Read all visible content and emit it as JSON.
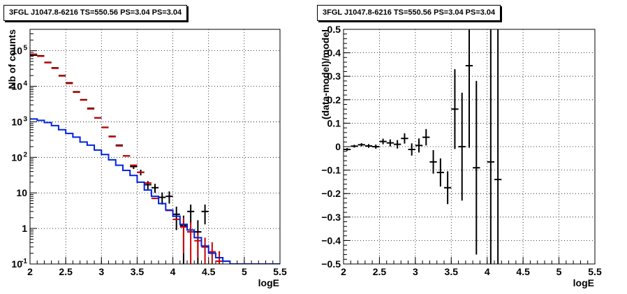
{
  "left_panel": {
    "title": "3FGL J1047.8-6216 TS=550.56 PS=3.04 PS=3.04",
    "xlabel": "logE",
    "ylabel": "Nb of counts"
  },
  "right_panel": {
    "title": "3FGL J1047.8-6216 TS=550.56 PS=3.04 PS=3.04",
    "xlabel": "logE",
    "ylabel": "(data-model)/model"
  },
  "colors": {
    "data": "#000000",
    "model_total": "#cc0000",
    "model_source": "#0022dd",
    "grid": "#000000"
  },
  "chart_data": [
    {
      "type": "line",
      "title": "3FGL J1047.8-6216 TS=550.56 PS=3.04 PS=3.04",
      "xlabel": "logE",
      "ylabel": "Nb of counts",
      "xlim": [
        2,
        5.5
      ],
      "ylim": [
        0.1,
        400000
      ],
      "yscale": "log",
      "grid": true,
      "x_ticks": [
        "2",
        "2.5",
        "3",
        "3.5",
        "4",
        "4.5",
        "5",
        "5.5"
      ],
      "y_ticks": [
        {
          "value": 0.1,
          "label": "10",
          "sup": "-1"
        },
        {
          "value": 1,
          "label": "1",
          "sup": ""
        },
        {
          "value": 10,
          "label": "10",
          "sup": ""
        },
        {
          "value": 100,
          "label": "10",
          "sup": "2"
        },
        {
          "value": 1000,
          "label": "10",
          "sup": "3"
        },
        {
          "value": 10000,
          "label": "10",
          "sup": "4"
        },
        {
          "value": 100000,
          "label": "10",
          "sup": "5"
        }
      ],
      "bin_edges": [
        2.0,
        2.1,
        2.2,
        2.3,
        2.4,
        2.5,
        2.6,
        2.7,
        2.8,
        2.9,
        3.0,
        3.1,
        3.2,
        3.3,
        3.4,
        3.5,
        3.6,
        3.7,
        3.8,
        3.9,
        4.0,
        4.1,
        4.2,
        4.3,
        4.4,
        4.5,
        4.6,
        4.7,
        4.8,
        4.9,
        5.0,
        5.1,
        5.2,
        5.3,
        5.4,
        5.5
      ],
      "series": [
        {
          "style": "points",
          "color": "#000000",
          "x": [
            2.05,
            2.15,
            2.25,
            2.35,
            2.45,
            2.55,
            2.65,
            2.75,
            2.85,
            2.95,
            3.05,
            3.15,
            3.25,
            3.35,
            3.45,
            3.55,
            3.65,
            3.75,
            3.85,
            3.95,
            4.05,
            4.15,
            4.25,
            4.35,
            4.45
          ],
          "y": [
            75000,
            72000,
            47000,
            33000,
            20000,
            12500,
            7000,
            4200,
            2400,
            1300,
            700,
            390,
            220,
            110,
            55,
            38,
            17,
            14,
            7.5,
            8,
            2.5,
            1.2,
            3,
            0.8,
            3
          ],
          "yerr": [
            0,
            0,
            0,
            0,
            0,
            0,
            0,
            0,
            0,
            0,
            0,
            0,
            0,
            0,
            8,
            7,
            4.5,
            4,
            2.8,
            3,
            1.6,
            1.1,
            1.7,
            0.9,
            1.7
          ]
        },
        {
          "style": "points",
          "color": "#cc0000",
          "x": [
            2.05,
            2.15,
            2.25,
            2.35,
            2.45,
            2.55,
            2.65,
            2.75,
            2.85,
            2.95,
            3.05,
            3.15,
            3.25,
            3.35,
            3.45,
            3.55,
            3.65,
            3.75,
            3.85,
            3.95,
            4.05,
            4.15,
            4.25,
            4.35,
            4.45,
            4.55,
            4.65
          ],
          "y": [
            80000,
            70000,
            46000,
            32000,
            19500,
            12000,
            6800,
            4100,
            2300,
            1280,
            690,
            380,
            210,
            110,
            60,
            38,
            19,
            7,
            5,
            3.2,
            1.8,
            1.1,
            0.8,
            0.45,
            0.3,
            0.22,
            0.12
          ],
          "yerr": [
            0,
            0,
            0,
            0,
            0,
            0,
            0,
            0,
            0,
            0,
            0,
            0,
            0,
            0,
            0,
            0,
            0,
            0,
            0,
            0,
            0,
            0.9,
            0.7,
            0.3,
            0.25,
            0.19,
            0.11
          ]
        },
        {
          "style": "step",
          "color": "#0022dd",
          "y": [
            1200,
            1100,
            950,
            780,
            600,
            470,
            370,
            270,
            220,
            160,
            120,
            85,
            60,
            43,
            31,
            20,
            12,
            8,
            5,
            3.3,
            2.2,
            1.3,
            0.9,
            0.55,
            0.32,
            0.2,
            0.15,
            0.12,
            0.1,
            0.1,
            0.1,
            0.1,
            0.1,
            0.1,
            0.1
          ]
        }
      ]
    },
    {
      "type": "scatter",
      "title": "3FGL J1047.8-6216 TS=550.56 PS=3.04 PS=3.04",
      "xlabel": "logE",
      "ylabel": "(data-model)/model",
      "xlim": [
        2,
        5.5
      ],
      "ylim": [
        -0.5,
        0.5
      ],
      "grid": true,
      "x_ticks": [
        "2",
        "2.5",
        "3",
        "3.5",
        "4",
        "4.5",
        "5",
        "5.5"
      ],
      "y_ticks": [
        "-0.5",
        "-0.4",
        "-0.3",
        "-0.2",
        "-0.1",
        "0",
        "0.1",
        "0.2",
        "0.3",
        "0.4",
        "0.5"
      ],
      "series": [
        {
          "style": "points",
          "color": "#000000",
          "x": [
            2.05,
            2.15,
            2.25,
            2.35,
            2.45,
            2.55,
            2.65,
            2.75,
            2.85,
            2.95,
            3.05,
            3.15,
            3.25,
            3.35,
            3.45,
            3.55,
            3.65,
            3.75,
            3.85,
            4.05,
            4.15
          ],
          "y": [
            -0.012,
            0.002,
            0.008,
            0.003,
            0.0,
            0.022,
            0.016,
            0.01,
            0.035,
            -0.012,
            0.005,
            0.04,
            -0.065,
            -0.11,
            -0.175,
            0.16,
            0.0,
            0.345,
            -0.09,
            -0.065,
            -0.14
          ],
          "yerr": [
            0.006,
            0.006,
            0.007,
            0.008,
            0.009,
            0.012,
            0.015,
            0.018,
            0.022,
            0.026,
            0.03,
            0.035,
            0.05,
            0.06,
            0.07,
            0.17,
            0.23,
            0.35,
            0.37,
            0.7,
            0.7
          ]
        }
      ]
    }
  ]
}
